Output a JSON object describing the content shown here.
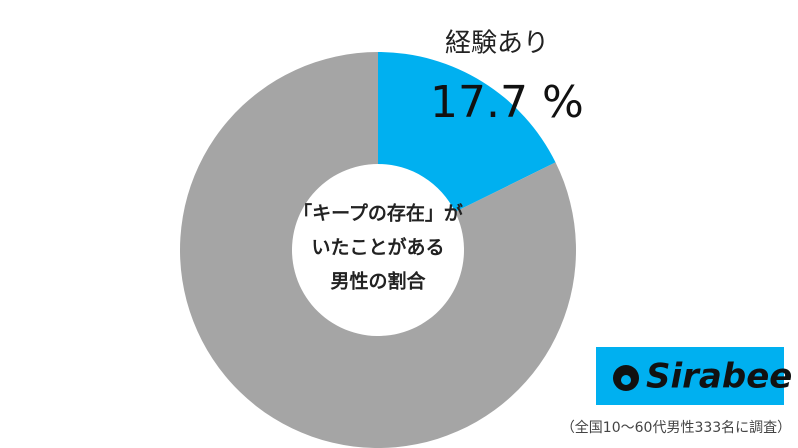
{
  "chart_data": {
    "type": "donut",
    "center_text": [
      "「キープの存在」が",
      "いたことがある",
      "男性の割合"
    ],
    "categories": [
      "経験あり",
      null
    ],
    "values": [
      17.7,
      82.3
    ],
    "value_labels": [
      "17.7 %",
      null
    ],
    "colors": [
      "#00b0f0",
      "#a5a5a5"
    ],
    "logo": "Sirabee",
    "note": "（全国10～60代男性333名に調査）"
  }
}
